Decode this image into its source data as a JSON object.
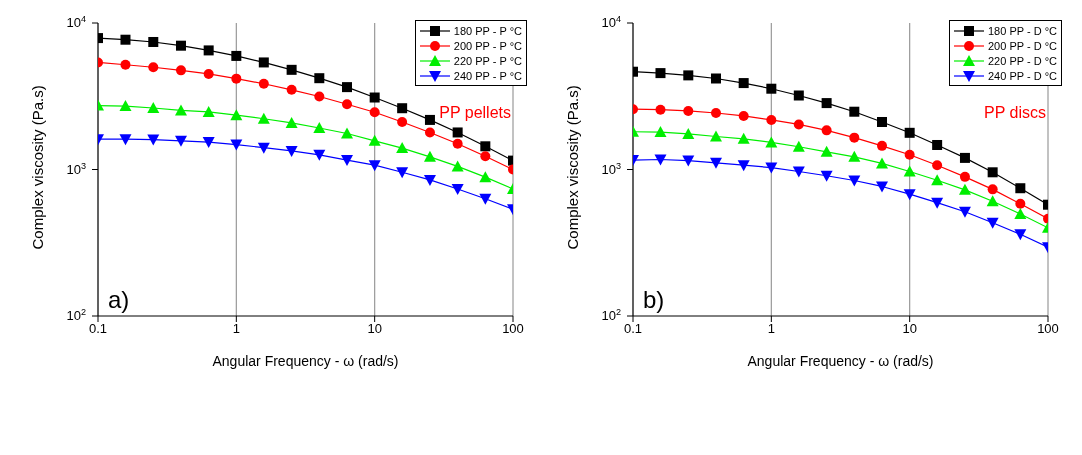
{
  "chart_data": [
    {
      "type": "line",
      "xlabel": "Angular Frequency - ω (rad/s)",
      "ylabel": "Complex viscosity (Pa.s)",
      "log": "xy",
      "grid": "x",
      "legend": "top right",
      "xlim": [
        0.1,
        100
      ],
      "xticks": [
        0.1,
        1,
        10,
        100
      ],
      "ylim": [
        100,
        10000
      ],
      "yticks": [
        {
          "value": 100,
          "label": "10$^{2}$"
        },
        {
          "value": 1000,
          "label": "10$^{3}$"
        },
        {
          "value": 10000,
          "label": "10$^{4}$"
        }
      ],
      "annotations": [
        "PP pellets",
        "a)"
      ],
      "x": [
        0.1,
        0.158,
        0.251,
        0.398,
        0.631,
        1,
        1.58,
        2.51,
        3.98,
        6.31,
        10,
        15.8,
        25.1,
        39.8,
        63.1,
        100
      ],
      "series": [
        {
          "name": "180 PP - P °C",
          "color": "#000000",
          "marker": "square",
          "values": [
            7890,
            7690,
            7420,
            7000,
            6500,
            5960,
            5380,
            4790,
            4200,
            3650,
            3100,
            2620,
            2180,
            1790,
            1440,
            1150
          ]
        },
        {
          "name": "200 PP - P °C",
          "color": "#ff0000",
          "marker": "circle",
          "values": [
            5380,
            5190,
            4990,
            4750,
            4490,
            4170,
            3850,
            3500,
            3150,
            2790,
            2460,
            2110,
            1790,
            1500,
            1230,
            1000
          ]
        },
        {
          "name": "220 PP - P °C",
          "color": "#00ee00",
          "marker": "triangle",
          "values": [
            2730,
            2710,
            2630,
            2530,
            2470,
            2350,
            2220,
            2080,
            1920,
            1760,
            1570,
            1400,
            1220,
            1050,
            887,
            736
          ]
        },
        {
          "name": "240 PP - P °C",
          "color": "#0000ff",
          "marker": "triangle-down",
          "values": [
            1610,
            1610,
            1600,
            1570,
            1540,
            1480,
            1410,
            1340,
            1260,
            1160,
            1070,
            958,
            849,
            736,
            632,
            536
          ]
        }
      ]
    },
    {
      "type": "line",
      "xlabel": "Angular Frequency - ω (rad/s)",
      "ylabel": "Complex viscosity (Pa.s)",
      "log": "xy",
      "grid": "x",
      "legend": "top right",
      "xlim": [
        0.1,
        100
      ],
      "xticks": [
        0.1,
        1,
        10,
        100
      ],
      "ylim": [
        100,
        10000
      ],
      "yticks": [
        {
          "value": 100,
          "label": "10$^{2}$"
        },
        {
          "value": 1000,
          "label": "10$^{3}$"
        },
        {
          "value": 10000,
          "label": "10$^{4}$"
        }
      ],
      "annotations": [
        "PP discs",
        "b)"
      ],
      "x": [
        0.1,
        0.158,
        0.251,
        0.398,
        0.631,
        1,
        1.58,
        2.51,
        3.98,
        6.31,
        10,
        15.8,
        25.1,
        39.8,
        63.1,
        100
      ],
      "series": [
        {
          "name": "180 PP - D °C",
          "color": "#000000",
          "marker": "square",
          "values": [
            4650,
            4550,
            4390,
            4180,
            3890,
            3560,
            3200,
            2840,
            2480,
            2110,
            1780,
            1470,
            1200,
            957,
            745,
            575
          ]
        },
        {
          "name": "200 PP - D °C",
          "color": "#ff0000",
          "marker": "circle",
          "values": [
            2580,
            2560,
            2510,
            2430,
            2320,
            2180,
            2030,
            1850,
            1650,
            1450,
            1260,
            1070,
            891,
            732,
            583,
            461
          ]
        },
        {
          "name": "220 PP - D °C",
          "color": "#00ee00",
          "marker": "triangle",
          "values": [
            1810,
            1800,
            1750,
            1680,
            1620,
            1530,
            1430,
            1320,
            1220,
            1100,
            969,
            844,
            726,
            607,
            497,
            400
          ]
        },
        {
          "name": "240 PP - D °C",
          "color": "#0000ff",
          "marker": "triangle-down",
          "values": [
            1160,
            1170,
            1150,
            1110,
            1070,
            1030,
            969,
            906,
            841,
            766,
            679,
            594,
            515,
            433,
            361,
            295
          ]
        }
      ]
    }
  ]
}
